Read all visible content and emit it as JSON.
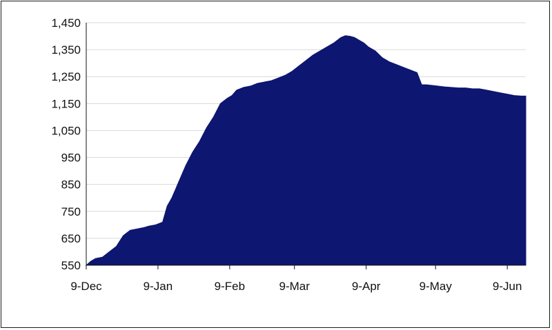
{
  "chart_data": {
    "type": "area",
    "title": "",
    "xlabel": "",
    "ylabel": "",
    "ylim": [
      550,
      1450
    ],
    "y_ticks": [
      "550",
      "650",
      "750",
      "850",
      "950",
      "1,050",
      "1,150",
      "1,250",
      "1,350",
      "1,450"
    ],
    "y_tick_values": [
      550,
      650,
      750,
      850,
      950,
      1050,
      1150,
      1250,
      1350,
      1450
    ],
    "x_ticks": [
      "9-Dec",
      "9-Jan",
      "9-Feb",
      "9-Mar",
      "9-Apr",
      "9-May",
      "9-Jun"
    ],
    "x_tick_days": [
      0,
      31,
      62,
      90,
      121,
      151,
      182
    ],
    "xlim_days": [
      0,
      190
    ],
    "grid": true,
    "fill_color": "#0d1670",
    "series": [
      {
        "x_days": [
          0,
          2,
          4,
          7,
          10,
          13,
          16,
          19,
          22,
          25,
          27,
          30,
          33,
          35,
          37,
          40,
          43,
          46,
          49,
          52,
          55,
          58,
          61,
          63,
          65,
          68,
          71,
          74,
          77,
          80,
          83,
          86,
          89,
          92,
          95,
          98,
          101,
          104,
          107,
          110,
          112,
          114,
          116,
          118,
          120,
          122,
          125,
          128,
          131,
          134,
          137,
          140,
          143,
          145,
          147,
          149,
          152,
          155,
          158,
          161,
          164,
          167,
          170,
          173,
          176,
          179,
          182,
          185,
          188,
          190
        ],
        "y": [
          550,
          565,
          575,
          580,
          600,
          620,
          660,
          680,
          685,
          690,
          695,
          700,
          710,
          770,
          800,
          860,
          920,
          970,
          1010,
          1060,
          1100,
          1150,
          1170,
          1180,
          1200,
          1210,
          1215,
          1225,
          1230,
          1235,
          1245,
          1255,
          1270,
          1290,
          1310,
          1330,
          1345,
          1360,
          1375,
          1395,
          1402,
          1400,
          1395,
          1385,
          1375,
          1360,
          1345,
          1320,
          1305,
          1295,
          1285,
          1275,
          1265,
          1220,
          1220,
          1218,
          1215,
          1212,
          1210,
          1208,
          1208,
          1205,
          1205,
          1200,
          1195,
          1190,
          1185,
          1180,
          1178,
          1178
        ]
      }
    ]
  }
}
